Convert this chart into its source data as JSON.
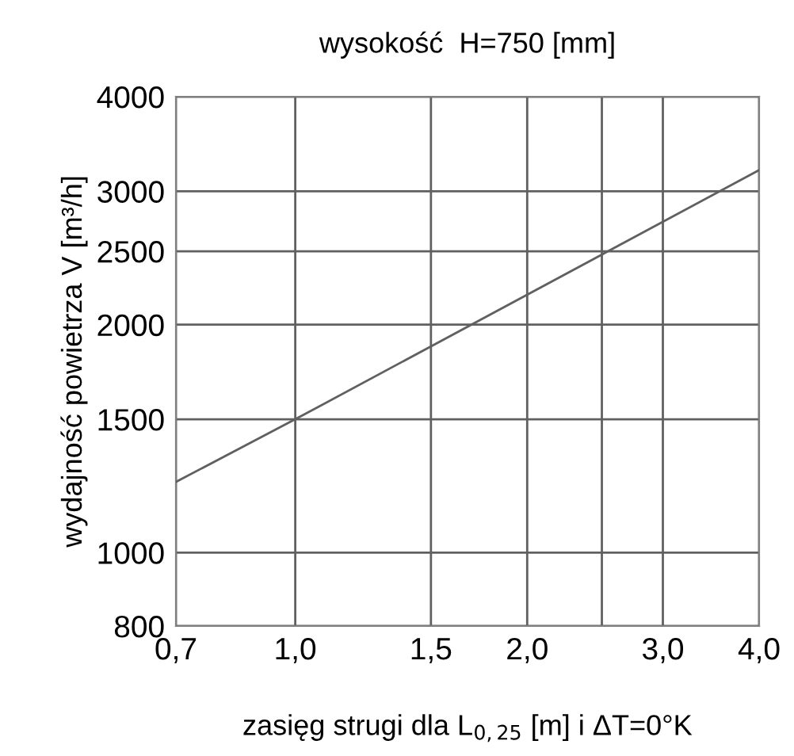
{
  "chart_data": {
    "type": "line",
    "title": "wysokość  H=750 [mm]",
    "xlabel": "zasięg strugi dla L$_{0,25}$ [m] i ΔT=0°K",
    "ylabel": "wydajność powietrza V [m³/h]",
    "log": "xy",
    "grid": true,
    "marker": "none",
    "line_style": "solid",
    "series": [
      {
        "color": "#606060",
        "x": [
          0.7,
          1.0,
          4.0
        ],
        "values": [
          1240,
          1500,
          3200
        ]
      }
    ],
    "xlim": [
      0.7,
      4.0
    ],
    "ylim": [
      800,
      4000
    ],
    "xticks": [
      {
        "value": 0.7,
        "label": "0,7"
      },
      {
        "value": 1.0,
        "label": "1,0"
      },
      {
        "value": 1.5,
        "label": "1,5"
      },
      {
        "value": 2.0,
        "label": "2,0"
      },
      {
        "value": 2.5,
        "label": null
      },
      {
        "value": 3.0,
        "label": "3,0"
      },
      {
        "value": 4.0,
        "label": "4,0"
      }
    ],
    "yticks": [
      800,
      1000,
      1500,
      2000,
      2500,
      3000,
      4000
    ]
  }
}
